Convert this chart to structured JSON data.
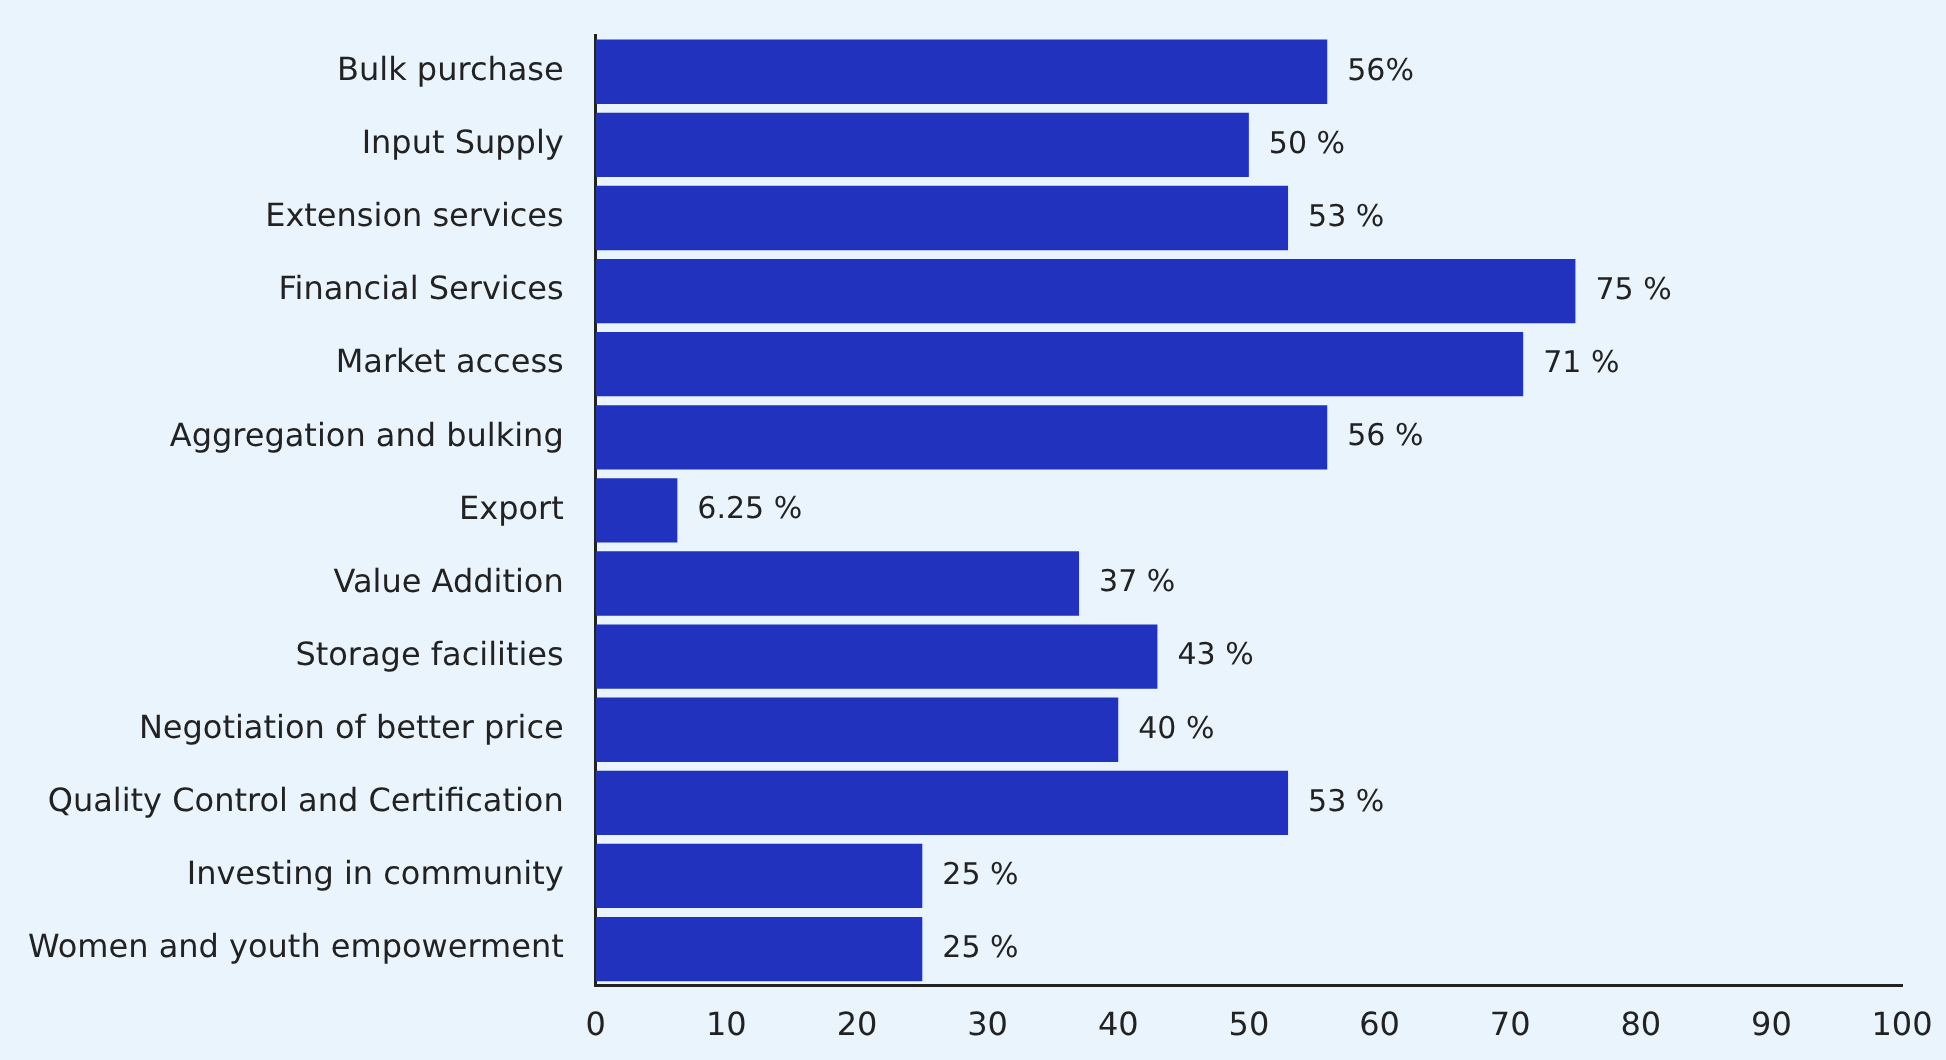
{
  "chart_data": {
    "type": "bar",
    "orientation": "horizontal",
    "categories": [
      "Bulk purchase",
      "Input Supply",
      "Extension services",
      "Financial Services",
      "Market access",
      "Aggregation and bulking",
      "Export",
      "Value Addition",
      "Storage facilities",
      "Negotiation of better price",
      "Quality Control and Certification",
      "Investing in community",
      "Women and youth empowerment"
    ],
    "values": [
      56,
      50,
      53,
      75,
      71,
      56,
      6.25,
      37,
      43,
      40,
      53,
      25,
      25
    ],
    "value_labels": [
      "56%",
      "50 %",
      "53 %",
      "75 %",
      "71 %",
      "56 %",
      "6.25 %",
      "37 %",
      "43 %",
      "40 %",
      "53 %",
      "25 %",
      "25 %"
    ],
    "color": "#2132bf",
    "xlim": [
      0,
      100
    ],
    "xticks": [
      0,
      10,
      20,
      30,
      40,
      50,
      60,
      70,
      80,
      90,
      100
    ],
    "grid": false,
    "legend": false
  }
}
